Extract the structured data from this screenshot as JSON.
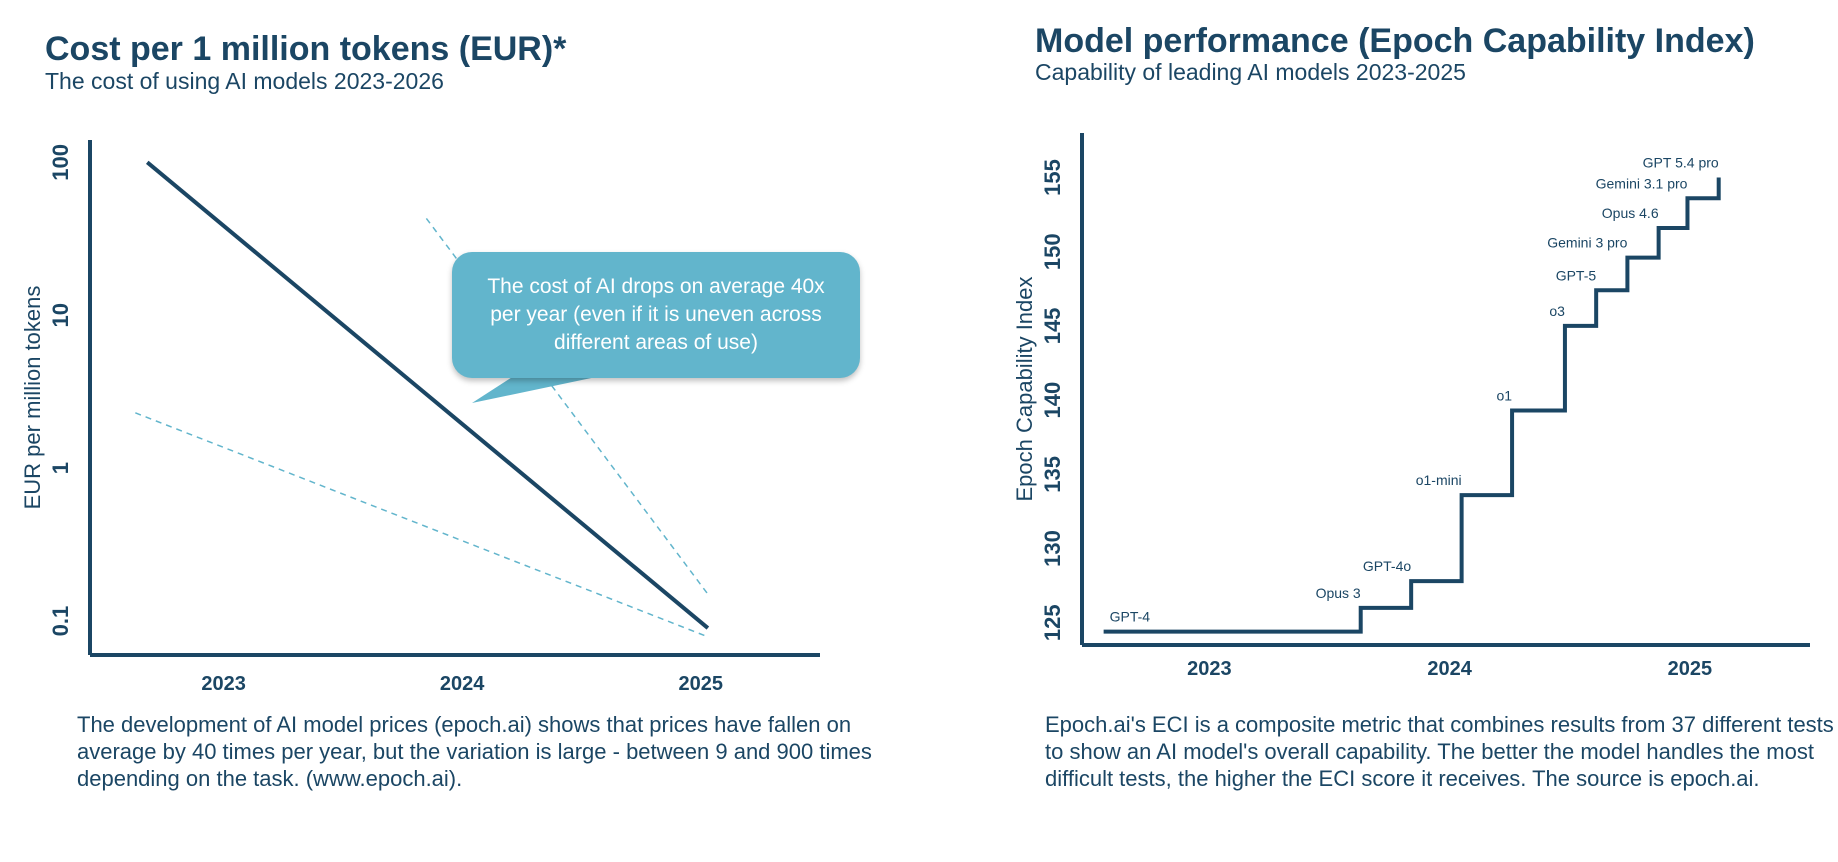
{
  "left": {
    "title": "Cost per 1 million tokens (EUR)*",
    "subtitle": "The cost of using AI models 2023-2026",
    "callout": "The cost of AI drops on average 40x per year (even if it is uneven across different areas of use)",
    "description": "The development of AI model prices (epoch.ai) shows that prices have fallen on average by 40 times per year, but the variation is large - between 9 and 900 times depending on the task. (www.epoch.ai).",
    "colors": {
      "line": "#1b4664",
      "dashed": "#62b5cc",
      "callout": "#62b5cc"
    }
  },
  "right": {
    "title": "Model performance (Epoch Capability Index)",
    "subtitle": "Capability of leading AI models 2023-2025",
    "description": "Epoch.ai's ECI is a composite metric that combines results from 37 different tests to show an AI model's overall capability. The better the model handles the most difficult tests, the higher the ECI score it receives. The source is epoch.ai.",
    "colors": {
      "line": "#1b4664"
    }
  },
  "chart_data": [
    {
      "type": "line",
      "title": "Cost per 1 million tokens (EUR)*",
      "subtitle": "The cost of using AI models 2023-2026",
      "xlabel": "",
      "ylabel": "EUR per million tokens",
      "y_scale": "log",
      "ylim": [
        0.06,
        140
      ],
      "xlim": [
        2022.44,
        2025.5
      ],
      "y_ticks": [
        "0.1",
        "1",
        "10",
        "100"
      ],
      "x_ticks": [
        "2023",
        "2024",
        "2025"
      ],
      "grid": false,
      "series": [
        {
          "style": "solid",
          "x": [
            2022.68,
            2025.03
          ],
          "y": [
            100,
            0.09
          ]
        },
        {
          "style": "dashed",
          "x": [
            2022.63,
            2025.02
          ],
          "y": [
            2.3,
            0.08
          ]
        },
        {
          "style": "dashed",
          "x": [
            2023.85,
            2025.03
          ],
          "y": [
            43,
            0.15
          ]
        }
      ]
    },
    {
      "type": "line",
      "title": "Model performance (Epoch Capability Index)",
      "subtitle": "Capability of leading AI models 2023-2025",
      "xlabel": "",
      "ylabel": "Epoch Capability Index",
      "ylim": [
        123.5,
        158
      ],
      "xlim": [
        2022.47,
        2025.5
      ],
      "y_ticks": [
        "125",
        "130",
        "135",
        "140",
        "145",
        "150",
        "155"
      ],
      "x_ticks": [
        "2023",
        "2024",
        "2025"
      ],
      "grid": false,
      "step_points": [
        {
          "x": 2022.56,
          "y": 124.4,
          "label": "GPT-4"
        },
        {
          "x": 2023.63,
          "y": 126.0,
          "label": "Opus 3"
        },
        {
          "x": 2023.84,
          "y": 127.8,
          "label": "GPT-4o"
        },
        {
          "x": 2024.05,
          "y": 133.6,
          "label": "o1-mini"
        },
        {
          "x": 2024.26,
          "y": 139.3,
          "label": "o1"
        },
        {
          "x": 2024.48,
          "y": 145.0,
          "label": "o3"
        },
        {
          "x": 2024.61,
          "y": 147.4,
          "label": "GPT-5"
        },
        {
          "x": 2024.74,
          "y": 149.6,
          "label": "Gemini 3 pro"
        },
        {
          "x": 2024.87,
          "y": 151.6,
          "label": "Opus 4.6"
        },
        {
          "x": 2024.99,
          "y": 153.6,
          "label": "Gemini 3.1 pro"
        },
        {
          "x": 2025.12,
          "y": 155.0,
          "label": "GPT 5.4 pro"
        }
      ],
      "step_end": {
        "x": 2025.12
      }
    }
  ]
}
